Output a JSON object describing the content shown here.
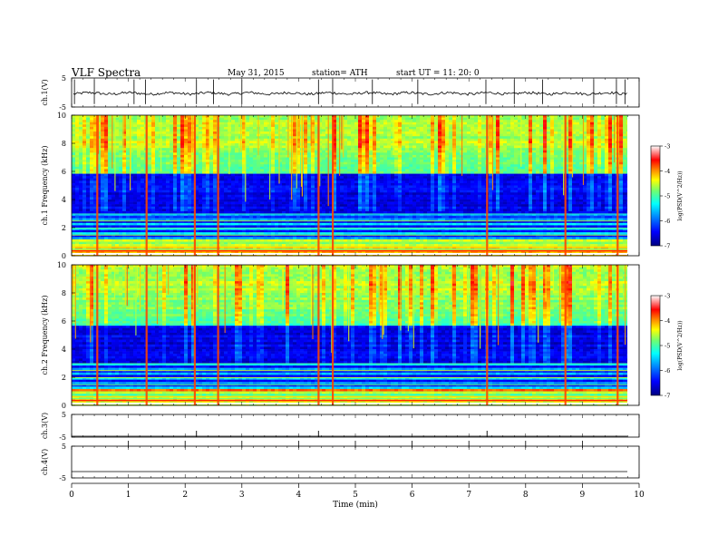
{
  "header": {
    "title": "VLF Spectra",
    "date": "May 31, 2015",
    "station": "station= ATH",
    "start": "start  UT =   11: 20: 0"
  },
  "chart_data": [
    {
      "type": "line",
      "panel": "ch1-waveform",
      "ylabel": "ch.1(V)",
      "yticks": [
        "5",
        "-5"
      ],
      "ylim": [
        -5,
        5
      ],
      "baseline": -0.3,
      "spikes_x": [
        0.05,
        0.4,
        1.1,
        1.3,
        2.2,
        2.5,
        3.0,
        4.35,
        4.6,
        5.3,
        6.1,
        7.3,
        7.8,
        8.3,
        9.2,
        9.6,
        9.75
      ]
    },
    {
      "type": "heatmap",
      "panel": "ch1-spectrogram",
      "ylabel": "ch.1 Frequency (kHz)",
      "ylim": [
        0,
        10
      ],
      "yticks": [
        "0",
        "2",
        "4",
        "6",
        "8",
        "10"
      ],
      "colorbar": {
        "label": "log(PSD(V^2/Hz))",
        "range": [
          -7,
          -3
        ],
        "ticks": [
          "-3",
          "-4",
          "-5",
          "-6",
          "-7"
        ],
        "colors": [
          "#00007f",
          "#0000ff",
          "#0080ff",
          "#00ffff",
          "#80ff80",
          "#ffff00",
          "#ff8000",
          "#ff0000",
          "#ffffff"
        ]
      },
      "strong_sferics_x": [
        0.45,
        1.32,
        2.17,
        2.58,
        4.35,
        4.6,
        7.32,
        8.7,
        9.62
      ],
      "dark_band_khz": [
        3.2,
        5.8
      ]
    },
    {
      "type": "heatmap",
      "panel": "ch2-spectrogram",
      "ylabel": "ch.2 Frequency (kHz)",
      "ylim": [
        0,
        10
      ],
      "yticks": [
        "0",
        "2",
        "4",
        "6",
        "8",
        "10"
      ],
      "colorbar": {
        "label": "log(PSD(V^2/Hz))",
        "range": [
          -7,
          -3
        ],
        "ticks": [
          "-3",
          "-4",
          "-5",
          "-6",
          "-7"
        ]
      },
      "strong_sferics_x": [
        0.45,
        1.32,
        2.17,
        2.58,
        4.35,
        4.6,
        7.32,
        8.7,
        9.62
      ],
      "dark_band_khz": [
        3.0,
        5.6
      ]
    },
    {
      "type": "line",
      "panel": "ch3-waveform",
      "ylabel": "ch.3(V)",
      "yticks": [
        "5",
        "-5"
      ],
      "ylim": [
        -5,
        5
      ],
      "baseline": -5,
      "spikes_x": [
        2.2,
        4.35,
        7.32
      ]
    },
    {
      "type": "line",
      "panel": "ch4-waveform",
      "ylabel": "ch.4(V)",
      "yticks": [
        "5",
        "-5"
      ],
      "ylim": [
        -5,
        5
      ],
      "baseline": -3,
      "pulses_x": [
        1,
        2,
        3,
        4,
        5,
        6,
        7,
        8,
        9
      ]
    }
  ],
  "xaxis": {
    "label": "Time  (min)",
    "range": [
      0,
      10
    ],
    "data_end": 9.8,
    "ticks": [
      "0",
      "1",
      "2",
      "3",
      "4",
      "5",
      "6",
      "7",
      "8",
      "9",
      "10"
    ]
  }
}
